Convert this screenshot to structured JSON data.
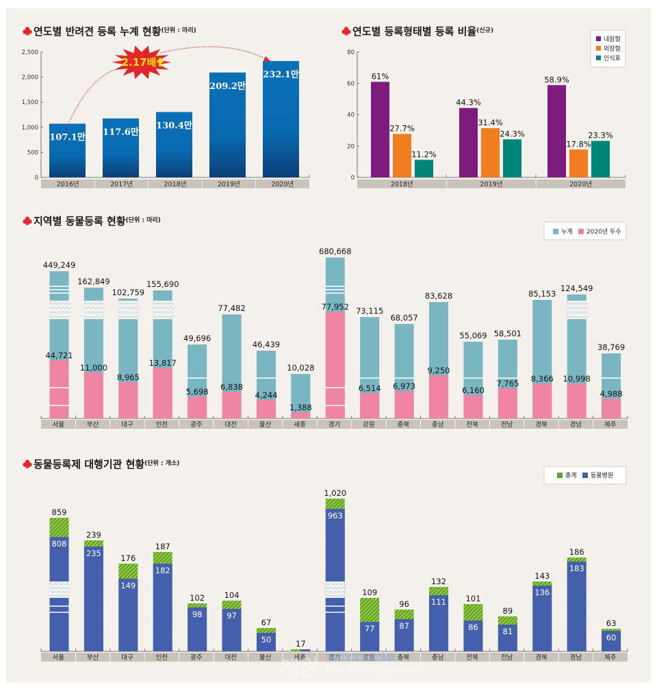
{
  "chart_data": [
    {
      "id": "cumulative",
      "type": "bar",
      "title": "연도별 반려견 등록 누계 현황",
      "unit": "(단위 : 마리)",
      "categories": [
        "2016년",
        "2017년",
        "2018년",
        "2019년",
        "2020년"
      ],
      "values": [
        1071,
        1176,
        1304,
        2092,
        2321
      ],
      "value_unit": "천 마리",
      "data_labels": [
        "107.1만",
        "117.6만",
        "130.4만",
        "209.2만",
        "232.1만"
      ],
      "yticks": [
        "0",
        "500",
        "1,000",
        "1,500",
        "2,000",
        "2,500"
      ],
      "ylim": [
        0,
        2500
      ],
      "annotation": "2.17배",
      "annotation_arrow": "up-arrow-icon",
      "color": "#0a6fb5"
    },
    {
      "id": "type-ratio",
      "type": "bar",
      "title": "연도별 등록형태별 등록 비율",
      "unit": "(신규)",
      "categories": [
        "2018년",
        "2019년",
        "2020년"
      ],
      "series": [
        {
          "name": "내장형",
          "values": [
            61,
            44.3,
            58.9
          ],
          "labels": [
            "61%",
            "44.3%",
            "58.9%"
          ],
          "color": "#7e1c7d"
        },
        {
          "name": "외장형",
          "values": [
            27.7,
            31.4,
            17.8
          ],
          "labels": [
            "27.7%",
            "31.4%",
            "17.8%"
          ],
          "color": "#f07d1f"
        },
        {
          "name": "인식표",
          "values": [
            11.2,
            24.3,
            23.3
          ],
          "labels": [
            "11.2%",
            "24.3%",
            "23.3%"
          ],
          "color": "#00857a"
        }
      ],
      "yticks": [
        "0",
        "20",
        "40",
        "60",
        "80"
      ],
      "ylim": [
        0,
        80
      ],
      "legend": "top-right"
    },
    {
      "id": "regional",
      "type": "bar",
      "title": "지역별 동물등록 현황",
      "unit": "(단위 : 마리)",
      "categories": [
        "서울",
        "부산",
        "대구",
        "인천",
        "광주",
        "대전",
        "울산",
        "세종",
        "경기",
        "강원",
        "충북",
        "충남",
        "전북",
        "전남",
        "경북",
        "경남",
        "제주"
      ],
      "series": [
        {
          "name": "누계",
          "values": [
            449249,
            162849,
            102759,
            155690,
            49696,
            77482,
            46439,
            10028,
            680668,
            73115,
            68057,
            83628,
            55069,
            58501,
            85153,
            124549,
            38769
          ],
          "labels": [
            "449,249",
            "162,849",
            "102,759",
            "155,690",
            "49,696",
            "77,482",
            "46,439",
            "10,028",
            "680,668",
            "73,115",
            "68,057",
            "83,628",
            "55,069",
            "58,501",
            "85,153",
            "124,549",
            "38,769"
          ],
          "color": "#7ab6c1"
        },
        {
          "name": "2020년 두수",
          "values": [
            44721,
            11000,
            8965,
            13817,
            5698,
            6838,
            4244,
            1388,
            77952,
            6514,
            6973,
            9250,
            6160,
            7765,
            8366,
            10998,
            4988
          ],
          "labels": [
            "44,721",
            "11,000",
            "8,965",
            "13,817",
            "5,698",
            "6,838",
            "4,244",
            "1,388",
            "77,952",
            "6,514",
            "6,973",
            "9,250",
            "6,160",
            "7,765",
            "8,366",
            "10,998",
            "4,988"
          ],
          "color": "#f084a5"
        }
      ],
      "axis_break": [
        "서울",
        "부산",
        "대구",
        "인천",
        "경기",
        "경남"
      ],
      "legend": "top-right"
    },
    {
      "id": "agencies",
      "type": "bar",
      "title": "동물등록제 대행기관 현황",
      "unit": "(단위 : 개소)",
      "categories": [
        "서울",
        "부산",
        "대구",
        "인천",
        "광주",
        "대전",
        "울산",
        "세종",
        "경기",
        "강원",
        "충북",
        "충남",
        "전북",
        "전남",
        "경북",
        "경남",
        "제주"
      ],
      "series": [
        {
          "name": "총계",
          "values": [
            859,
            239,
            176,
            187,
            102,
            104,
            67,
            17,
            1020,
            109,
            96,
            132,
            101,
            89,
            143,
            186,
            63
          ],
          "labels": [
            "859",
            "239",
            "176",
            "187",
            "102",
            "104",
            "67",
            "17",
            "1,020",
            "109",
            "96",
            "132",
            "101",
            "89",
            "143",
            "186",
            "63"
          ],
          "color": "#5aa832"
        },
        {
          "name": "동물병원",
          "values": [
            808,
            235,
            149,
            182,
            98,
            97,
            50,
            null,
            963,
            77,
            87,
            111,
            86,
            81,
            136,
            183,
            60
          ],
          "labels": [
            "808",
            "235",
            "149",
            "182",
            "98",
            "97",
            "50",
            "",
            "963",
            "77",
            "87",
            "111",
            "86",
            "81",
            "136",
            "183",
            "60"
          ],
          "color": "#4460ad"
        }
      ],
      "axis_break": [
        "서울",
        "경기"
      ],
      "legend": "top-right"
    }
  ],
  "watermark": {
    "text": "the daily gaewon",
    "sub": "반려동물을 위한 일간 전문저널"
  }
}
